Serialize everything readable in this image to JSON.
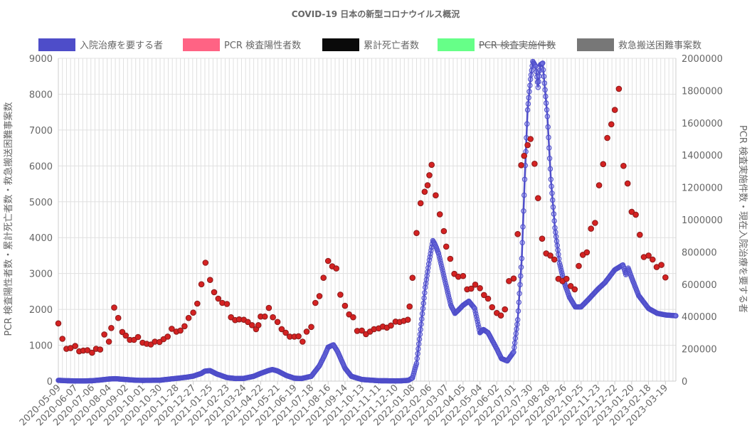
{
  "chart_data": {
    "type": "line",
    "title": "COVID-19 日本の新型コロナウイルス概況",
    "y_left_label": "PCR 検査陽性者数・累計死亡者数・救急搬送困難事案数",
    "y_right_label": "PCR 検査実施件数・現在入院治療を要する者",
    "y_left_range": [
      0,
      9000
    ],
    "y_right_range": [
      0,
      2000000
    ],
    "y_left_ticks": [
      "0",
      "1000",
      "2000",
      "3000",
      "4000",
      "5000",
      "6000",
      "7000",
      "8000",
      "9000"
    ],
    "y_right_ticks": [
      "0",
      "200000",
      "400000",
      "600000",
      "800000",
      "1000000",
      "1200000",
      "1400000",
      "1600000",
      "1800000",
      "2000000"
    ],
    "x_tick_labels": [
      "2020-05-09",
      "2020-06-07",
      "2020-07-06",
      "2020-08-04",
      "2020-09-02",
      "2020-10-01",
      "2020-10-30",
      "2020-11-28",
      "2020-12-27",
      "2021-01-25",
      "2021-02-23",
      "2021-03-24",
      "2021-04-22",
      "2021-05-21",
      "2021-06-19",
      "2021-07-18",
      "2021-08-16",
      "2021-09-14",
      "2021-10-13",
      "2021-11-11",
      "2021-12-10",
      "2022-01-08",
      "2022-02-06",
      "2022-03-07",
      "2022-04-05",
      "2022-05-04",
      "2022-06-02",
      "2022-07-01",
      "2022-07-30",
      "2022-08-28",
      "2022-09-26",
      "2022-10-25",
      "2022-11-23",
      "2022-12-22",
      "2023-01-20",
      "2023-02-18",
      "2023-03-19"
    ],
    "x_start": "2020-05-09",
    "x_end": "2023-04-06",
    "grid": true,
    "legend_position": "top",
    "series": [
      {
        "name": "入院治療を要する者",
        "axis": "right",
        "color": "#4e4dc9",
        "hidden": false,
        "points": [
          [
            "2020-05-09",
            5000
          ],
          [
            "2020-05-23",
            2500
          ],
          [
            "2020-06-07",
            1200
          ],
          [
            "2020-06-20",
            900
          ],
          [
            "2020-07-06",
            2500
          ],
          [
            "2020-07-20",
            7000
          ],
          [
            "2020-08-04",
            13000
          ],
          [
            "2020-08-15",
            15000
          ],
          [
            "2020-09-02",
            10000
          ],
          [
            "2020-09-20",
            5500
          ],
          [
            "2020-10-01",
            4500
          ],
          [
            "2020-10-30",
            5500
          ],
          [
            "2020-11-15",
            12000
          ],
          [
            "2020-11-28",
            17000
          ],
          [
            "2020-12-15",
            24000
          ],
          [
            "2020-12-27",
            31000
          ],
          [
            "2021-01-10",
            48000
          ],
          [
            "2021-01-16",
            62000
          ],
          [
            "2021-01-25",
            65000
          ],
          [
            "2021-02-05",
            45000
          ],
          [
            "2021-02-23",
            22000
          ],
          [
            "2021-03-10",
            16000
          ],
          [
            "2021-03-24",
            17000
          ],
          [
            "2021-04-10",
            30000
          ],
          [
            "2021-04-22",
            48000
          ],
          [
            "2021-05-05",
            65000
          ],
          [
            "2021-05-12",
            72000
          ],
          [
            "2021-05-21",
            63000
          ],
          [
            "2021-06-05",
            35000
          ],
          [
            "2021-06-19",
            18000
          ],
          [
            "2021-07-01",
            16000
          ],
          [
            "2021-07-18",
            30000
          ],
          [
            "2021-08-01",
            95000
          ],
          [
            "2021-08-10",
            160000
          ],
          [
            "2021-08-16",
            210000
          ],
          [
            "2021-08-25",
            225000
          ],
          [
            "2021-09-01",
            185000
          ],
          [
            "2021-09-14",
            80000
          ],
          [
            "2021-09-25",
            30000
          ],
          [
            "2021-10-13",
            10000
          ],
          [
            "2021-11-11",
            2500
          ],
          [
            "2021-12-10",
            1500
          ],
          [
            "2021-12-20",
            2000
          ],
          [
            "2022-01-01",
            5000
          ],
          [
            "2022-01-08",
            20000
          ],
          [
            "2022-01-15",
            110000
          ],
          [
            "2022-01-22",
            320000
          ],
          [
            "2022-01-30",
            580000
          ],
          [
            "2022-02-06",
            750000
          ],
          [
            "2022-02-12",
            870000
          ],
          [
            "2022-02-16",
            845000
          ],
          [
            "2022-02-22",
            790000
          ],
          [
            "2022-03-07",
            590000
          ],
          [
            "2022-03-15",
            470000
          ],
          [
            "2022-03-22",
            420000
          ],
          [
            "2022-03-28",
            440000
          ],
          [
            "2022-04-05",
            470000
          ],
          [
            "2022-04-15",
            495000
          ],
          [
            "2022-04-25",
            450000
          ],
          [
            "2022-05-04",
            300000
          ],
          [
            "2022-05-10",
            320000
          ],
          [
            "2022-05-18",
            300000
          ],
          [
            "2022-06-02",
            200000
          ],
          [
            "2022-06-10",
            140000
          ],
          [
            "2022-06-20",
            125000
          ],
          [
            "2022-07-01",
            180000
          ],
          [
            "2022-07-08",
            380000
          ],
          [
            "2022-07-15",
            760000
          ],
          [
            "2022-07-20",
            1250000
          ],
          [
            "2022-07-25",
            1680000
          ],
          [
            "2022-07-30",
            1870000
          ],
          [
            "2022-08-03",
            1980000
          ],
          [
            "2022-08-08",
            1950000
          ],
          [
            "2022-08-12",
            1820000
          ],
          [
            "2022-08-16",
            1960000
          ],
          [
            "2022-08-20",
            1970000
          ],
          [
            "2022-08-28",
            1640000
          ],
          [
            "2022-09-03",
            1250000
          ],
          [
            "2022-09-10",
            950000
          ],
          [
            "2022-09-18",
            730000
          ],
          [
            "2022-09-26",
            610000
          ],
          [
            "2022-10-05",
            520000
          ],
          [
            "2022-10-15",
            460000
          ],
          [
            "2022-10-25",
            460000
          ],
          [
            "2022-11-05",
            500000
          ],
          [
            "2022-11-23",
            570000
          ],
          [
            "2022-12-05",
            610000
          ],
          [
            "2022-12-22",
            690000
          ],
          [
            "2023-01-05",
            720000
          ],
          [
            "2023-01-10",
            660000
          ],
          [
            "2023-01-14",
            700000
          ],
          [
            "2023-01-20",
            640000
          ],
          [
            "2023-02-01",
            530000
          ],
          [
            "2023-02-18",
            450000
          ],
          [
            "2023-03-05",
            420000
          ],
          [
            "2023-03-19",
            410000
          ],
          [
            "2023-04-06",
            405000
          ]
        ]
      },
      {
        "name": "PCR 検査陽性者数",
        "axis": "left",
        "color": "#ff6384",
        "marker_fill": "#d42222",
        "marker_stroke": "#8b1a1a",
        "hidden": false,
        "points": [
          [
            "2020-05-09",
            1610
          ],
          [
            "2020-05-16",
            1180
          ],
          [
            "2020-05-23",
            900
          ],
          [
            "2020-05-30",
            920
          ],
          [
            "2020-06-07",
            980
          ],
          [
            "2020-06-14",
            830
          ],
          [
            "2020-06-21",
            850
          ],
          [
            "2020-06-28",
            860
          ],
          [
            "2020-07-06",
            790
          ],
          [
            "2020-07-13",
            900
          ],
          [
            "2020-07-20",
            880
          ],
          [
            "2020-07-27",
            1300
          ],
          [
            "2020-08-04",
            1100
          ],
          [
            "2020-08-08",
            1480
          ],
          [
            "2020-08-13",
            2050
          ],
          [
            "2020-08-20",
            1760
          ],
          [
            "2020-08-27",
            1370
          ],
          [
            "2020-09-02",
            1270
          ],
          [
            "2020-09-09",
            1150
          ],
          [
            "2020-09-16",
            1150
          ],
          [
            "2020-09-23",
            1230
          ],
          [
            "2020-10-01",
            1070
          ],
          [
            "2020-10-08",
            1040
          ],
          [
            "2020-10-15",
            1020
          ],
          [
            "2020-10-22",
            1100
          ],
          [
            "2020-10-30",
            1090
          ],
          [
            "2020-11-06",
            1170
          ],
          [
            "2020-11-13",
            1240
          ],
          [
            "2020-11-20",
            1460
          ],
          [
            "2020-11-28",
            1380
          ],
          [
            "2020-12-05",
            1410
          ],
          [
            "2020-12-12",
            1530
          ],
          [
            "2020-12-19",
            1760
          ],
          [
            "2020-12-27",
            1910
          ],
          [
            "2021-01-03",
            2160
          ],
          [
            "2021-01-10",
            2700
          ],
          [
            "2021-01-17",
            3300
          ],
          [
            "2021-01-25",
            2820
          ],
          [
            "2021-02-01",
            2480
          ],
          [
            "2021-02-08",
            2300
          ],
          [
            "2021-02-15",
            2180
          ],
          [
            "2021-02-23",
            2150
          ],
          [
            "2021-03-02",
            1780
          ],
          [
            "2021-03-09",
            1700
          ],
          [
            "2021-03-16",
            1720
          ],
          [
            "2021-03-24",
            1710
          ],
          [
            "2021-03-31",
            1650
          ],
          [
            "2021-04-07",
            1560
          ],
          [
            "2021-04-14",
            1450
          ],
          [
            "2021-04-18",
            1560
          ],
          [
            "2021-04-22",
            1800
          ],
          [
            "2021-04-29",
            1800
          ],
          [
            "2021-05-06",
            2040
          ],
          [
            "2021-05-13",
            1780
          ],
          [
            "2021-05-21",
            1650
          ],
          [
            "2021-05-28",
            1450
          ],
          [
            "2021-06-04",
            1350
          ],
          [
            "2021-06-11",
            1240
          ],
          [
            "2021-06-19",
            1240
          ],
          [
            "2021-06-26",
            1250
          ],
          [
            "2021-07-03",
            1100
          ],
          [
            "2021-07-10",
            1380
          ],
          [
            "2021-07-18",
            1510
          ],
          [
            "2021-07-25",
            2180
          ],
          [
            "2021-08-01",
            2370
          ],
          [
            "2021-08-08",
            2880
          ],
          [
            "2021-08-16",
            3350
          ],
          [
            "2021-08-23",
            3200
          ],
          [
            "2021-08-30",
            3140
          ],
          [
            "2021-09-06",
            2410
          ],
          [
            "2021-09-14",
            2100
          ],
          [
            "2021-09-21",
            1860
          ],
          [
            "2021-09-28",
            1780
          ],
          [
            "2021-10-05",
            1400
          ],
          [
            "2021-10-13",
            1410
          ],
          [
            "2021-10-20",
            1310
          ],
          [
            "2021-10-27",
            1380
          ],
          [
            "2021-11-03",
            1450
          ],
          [
            "2021-11-11",
            1470
          ],
          [
            "2021-11-18",
            1520
          ],
          [
            "2021-11-25",
            1490
          ],
          [
            "2021-12-02",
            1550
          ],
          [
            "2021-12-10",
            1660
          ],
          [
            "2021-12-17",
            1650
          ],
          [
            "2021-12-24",
            1680
          ],
          [
            "2021-12-31",
            1710
          ],
          [
            "2022-01-03",
            2080
          ],
          [
            "2022-01-08",
            2880
          ],
          [
            "2022-01-15",
            4130
          ],
          [
            "2022-01-22",
            4960
          ],
          [
            "2022-01-29",
            5280
          ],
          [
            "2022-02-03",
            5460
          ],
          [
            "2022-02-06",
            5740
          ],
          [
            "2022-02-10",
            6030
          ],
          [
            "2022-02-17",
            5180
          ],
          [
            "2022-02-24",
            4650
          ],
          [
            "2022-03-03",
            4180
          ],
          [
            "2022-03-07",
            3750
          ],
          [
            "2022-03-14",
            3410
          ],
          [
            "2022-03-21",
            2990
          ],
          [
            "2022-03-28",
            2910
          ],
          [
            "2022-04-05",
            2930
          ],
          [
            "2022-04-12",
            2560
          ],
          [
            "2022-04-19",
            2580
          ],
          [
            "2022-04-26",
            2690
          ],
          [
            "2022-05-04",
            2590
          ],
          [
            "2022-05-11",
            2400
          ],
          [
            "2022-05-18",
            2300
          ],
          [
            "2022-05-25",
            2060
          ],
          [
            "2022-06-02",
            1900
          ],
          [
            "2022-06-09",
            1830
          ],
          [
            "2022-06-16",
            2000
          ],
          [
            "2022-06-23",
            2790
          ],
          [
            "2022-07-01",
            2860
          ],
          [
            "2022-07-08",
            4100
          ],
          [
            "2022-07-14",
            6020
          ],
          [
            "2022-07-19",
            6280
          ],
          [
            "2022-07-25",
            6580
          ],
          [
            "2022-07-30",
            6750
          ],
          [
            "2022-08-06",
            6060
          ],
          [
            "2022-08-12",
            5100
          ],
          [
            "2022-08-19",
            3970
          ],
          [
            "2022-08-26",
            3560
          ],
          [
            "2022-09-02",
            3500
          ],
          [
            "2022-09-09",
            3390
          ],
          [
            "2022-09-16",
            2850
          ],
          [
            "2022-09-23",
            2790
          ],
          [
            "2022-09-30",
            2850
          ],
          [
            "2022-10-07",
            2650
          ],
          [
            "2022-10-14",
            2560
          ],
          [
            "2022-10-21",
            3210
          ],
          [
            "2022-10-28",
            3520
          ],
          [
            "2022-11-04",
            3590
          ],
          [
            "2022-11-11",
            4250
          ],
          [
            "2022-11-18",
            4410
          ],
          [
            "2022-11-25",
            5460
          ],
          [
            "2022-12-02",
            6050
          ],
          [
            "2022-12-09",
            6780
          ],
          [
            "2022-12-16",
            7160
          ],
          [
            "2022-12-22",
            7560
          ],
          [
            "2022-12-29",
            8150
          ],
          [
            "2023-01-06",
            6000
          ],
          [
            "2023-01-13",
            5510
          ],
          [
            "2023-01-20",
            4720
          ],
          [
            "2023-01-27",
            4640
          ],
          [
            "2023-02-03",
            4080
          ],
          [
            "2023-02-10",
            3460
          ],
          [
            "2023-02-18",
            3500
          ],
          [
            "2023-02-25",
            3390
          ],
          [
            "2023-03-04",
            3180
          ],
          [
            "2023-03-12",
            3240
          ],
          [
            "2023-03-19",
            2890
          ]
        ]
      },
      {
        "name": "累計死亡者数",
        "color": "#0a0a0a",
        "hidden": false,
        "points": []
      },
      {
        "name": "PCR 検査実施件数",
        "color": "#66ff88",
        "hidden": true,
        "points": []
      },
      {
        "name": "救急搬送困難事案数",
        "color": "#777777",
        "hidden": false,
        "points": []
      }
    ]
  }
}
